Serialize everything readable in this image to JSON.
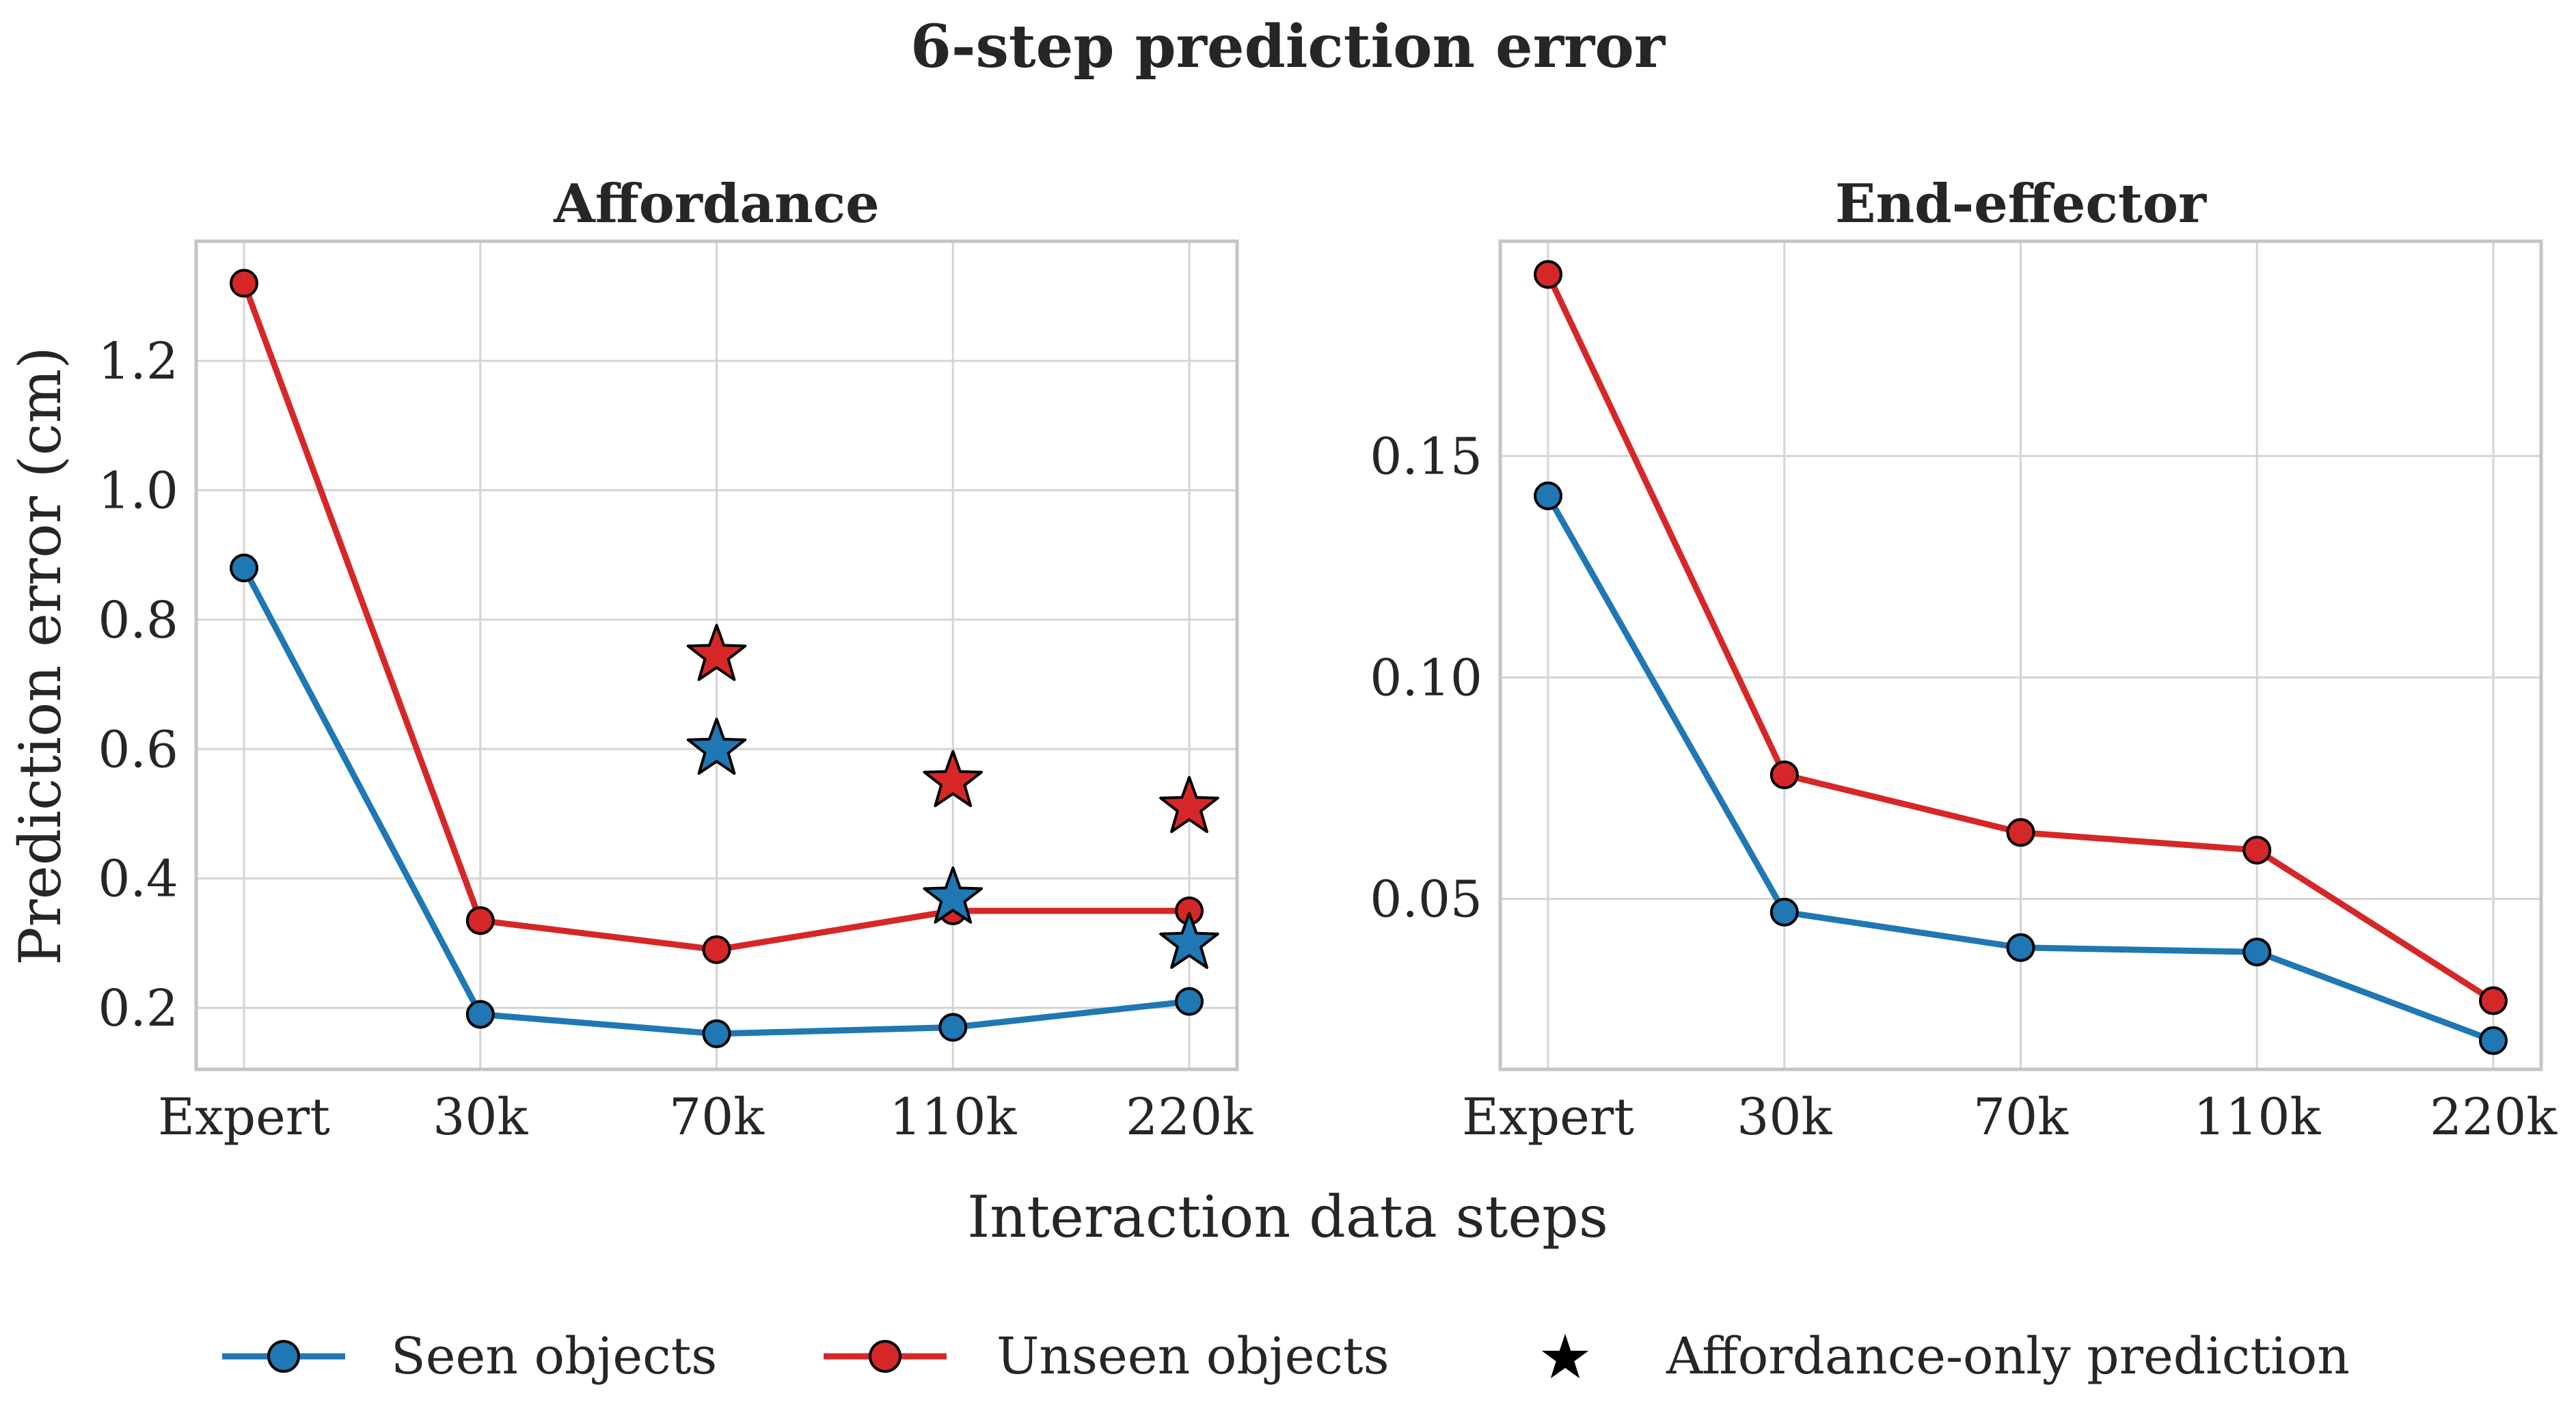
{
  "figure": {
    "suptitle": "6-step prediction error",
    "xlabel": "Interaction data steps",
    "colors": {
      "seen": "#1f77b4",
      "unseen": "#d62728",
      "star": "#000000"
    }
  },
  "legend": {
    "seen": "Seen objects",
    "unseen": "Unseen objects",
    "star": "Affordance-only prediction"
  },
  "chart_data": [
    {
      "type": "line",
      "title": "Affordance",
      "xlabel": "Interaction data steps",
      "ylabel": "Prediction error (cm)",
      "categories": [
        "Expert",
        "30k",
        "70k",
        "110k",
        "220k"
      ],
      "ylim": [
        0.105,
        1.385
      ],
      "yticks": [
        0.2,
        0.4,
        0.6,
        0.8,
        1.0,
        1.2
      ],
      "ytick_labels": [
        "0.2",
        "0.4",
        "0.6",
        "0.8",
        "1.0",
        "1.2"
      ],
      "grid": true,
      "series": [
        {
          "name": "Seen objects",
          "color": "#1f77b4",
          "values": [
            0.88,
            0.19,
            0.16,
            0.17,
            0.21
          ]
        },
        {
          "name": "Unseen objects",
          "color": "#d62728",
          "values": [
            1.32,
            0.335,
            0.29,
            0.35,
            0.35
          ]
        }
      ],
      "stars": [
        {
          "series": "Unseen objects",
          "color": "#d62728",
          "category": "70k",
          "value": 0.745
        },
        {
          "series": "Seen objects",
          "color": "#1f77b4",
          "category": "70k",
          "value": 0.6
        },
        {
          "series": "Unseen objects",
          "color": "#d62728",
          "category": "110k",
          "value": 0.55
        },
        {
          "series": "Seen objects",
          "color": "#1f77b4",
          "category": "110k",
          "value": 0.37
        },
        {
          "series": "Unseen objects",
          "color": "#d62728",
          "category": "220k",
          "value": 0.51
        },
        {
          "series": "Seen objects",
          "color": "#1f77b4",
          "category": "220k",
          "value": 0.3
        }
      ]
    },
    {
      "type": "line",
      "title": "End-effector",
      "xlabel": "Interaction data steps",
      "ylabel": "",
      "categories": [
        "Expert",
        "30k",
        "70k",
        "110k",
        "220k"
      ],
      "ylim": [
        0.0115,
        0.1985
      ],
      "yticks": [
        0.05,
        0.1,
        0.15
      ],
      "ytick_labels": [
        "0.05",
        "0.10",
        "0.15"
      ],
      "grid": true,
      "series": [
        {
          "name": "Seen objects",
          "color": "#1f77b4",
          "values": [
            0.141,
            0.047,
            0.039,
            0.038,
            0.018
          ]
        },
        {
          "name": "Unseen objects",
          "color": "#d62728",
          "values": [
            0.191,
            0.078,
            0.065,
            0.061,
            0.027
          ]
        }
      ],
      "stars": []
    }
  ]
}
